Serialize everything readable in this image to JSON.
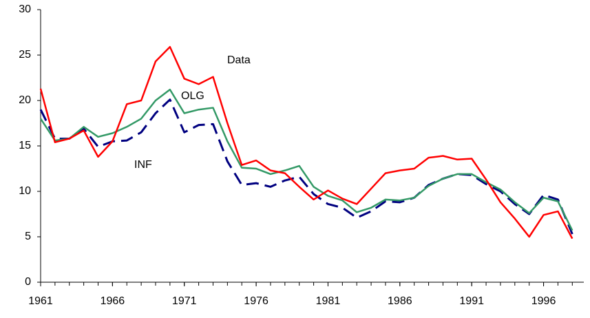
{
  "chart_data": {
    "type": "line",
    "x": [
      1961,
      1962,
      1963,
      1964,
      1965,
      1966,
      1967,
      1968,
      1969,
      1970,
      1971,
      1972,
      1973,
      1974,
      1975,
      1976,
      1977,
      1978,
      1979,
      1980,
      1981,
      1982,
      1983,
      1984,
      1985,
      1986,
      1987,
      1988,
      1989,
      1990,
      1991,
      1992,
      1993,
      1994,
      1995,
      1996,
      1997,
      1998
    ],
    "series": [
      {
        "name": "Data",
        "color": "#ff0000",
        "dash": false,
        "values": [
          21.3,
          15.4,
          15.8,
          16.7,
          13.8,
          15.5,
          19.6,
          20.0,
          24.3,
          25.9,
          22.4,
          21.8,
          22.6,
          17.5,
          12.9,
          13.4,
          12.3,
          12.0,
          10.5,
          9.1,
          10.1,
          9.2,
          8.6,
          10.3,
          12.0,
          12.3,
          12.5,
          13.7,
          13.9,
          13.5,
          13.6,
          11.3,
          8.8,
          7.0,
          5.0,
          7.4,
          7.8,
          4.8
        ]
      },
      {
        "name": "OLG",
        "color": "#339966",
        "dash": false,
        "values": [
          18.0,
          15.6,
          15.8,
          17.1,
          16.0,
          16.4,
          17.1,
          18.0,
          20.0,
          21.2,
          18.6,
          19.0,
          19.2,
          15.5,
          12.6,
          12.5,
          11.9,
          12.3,
          12.8,
          10.5,
          9.5,
          9.0,
          7.7,
          8.2,
          9.1,
          9.0,
          9.3,
          10.6,
          11.4,
          11.9,
          11.9,
          11.0,
          10.2,
          8.8,
          7.6,
          9.3,
          8.9,
          5.7
        ]
      },
      {
        "name": "INF",
        "color": "#000080",
        "dash": true,
        "values": [
          19.0,
          15.8,
          15.8,
          16.9,
          14.9,
          15.5,
          15.6,
          16.5,
          18.6,
          20.1,
          16.5,
          17.3,
          17.4,
          13.3,
          10.7,
          10.9,
          10.5,
          11.2,
          11.6,
          9.7,
          8.6,
          8.2,
          7.1,
          7.8,
          8.9,
          8.8,
          9.3,
          10.7,
          11.4,
          11.9,
          11.8,
          10.8,
          10.0,
          8.6,
          7.5,
          9.6,
          9.1,
          5.3
        ]
      }
    ],
    "xlim": [
      1961,
      1998.8
    ],
    "xticks": [
      1961,
      1966,
      1971,
      1976,
      1981,
      1986,
      1991,
      1996
    ],
    "ylim": [
      0,
      30
    ],
    "yticks": [
      0,
      5,
      10,
      15,
      20,
      25,
      30
    ],
    "grid": false
  }
}
